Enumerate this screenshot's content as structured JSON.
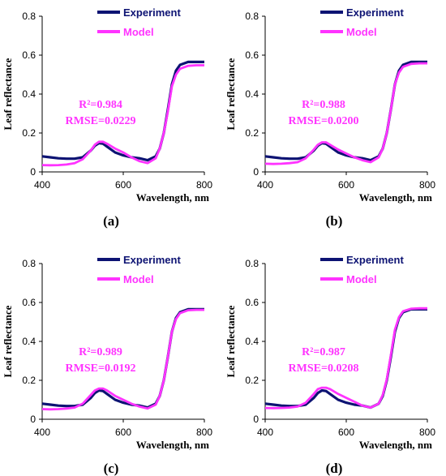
{
  "colors": {
    "experiment": "#0d1373",
    "model": "#ff33ff",
    "axis": "#000000"
  },
  "chart_data": [
    {
      "type": "line",
      "panel_label": "(a)",
      "xlabel": "Wavelength, nm",
      "ylabel": "Leaf reflectance",
      "xlim": [
        400,
        800
      ],
      "ylim": [
        0,
        0.8
      ],
      "xticks": [
        "400",
        "600",
        "800"
      ],
      "yticks": [
        "0",
        "0.2",
        "0.4",
        "0.6",
        "0.8"
      ],
      "r2_text": "R²=0.984",
      "rmse_text": "RMSE=0.0229",
      "series": [
        {
          "name": "Experiment",
          "x": [
            400,
            420,
            440,
            460,
            480,
            500,
            520,
            530,
            540,
            550,
            560,
            580,
            600,
            620,
            640,
            660,
            680,
            690,
            700,
            710,
            720,
            730,
            740,
            760,
            780,
            800
          ],
          "y": [
            0.08,
            0.075,
            0.07,
            0.068,
            0.068,
            0.075,
            0.11,
            0.135,
            0.148,
            0.145,
            0.13,
            0.1,
            0.085,
            0.075,
            0.07,
            0.06,
            0.08,
            0.12,
            0.2,
            0.32,
            0.45,
            0.52,
            0.55,
            0.565,
            0.565,
            0.565
          ]
        },
        {
          "name": "Model",
          "x": [
            400,
            420,
            440,
            460,
            480,
            500,
            520,
            530,
            540,
            550,
            560,
            580,
            600,
            620,
            640,
            660,
            680,
            690,
            700,
            710,
            720,
            730,
            740,
            760,
            780,
            800
          ],
          "y": [
            0.035,
            0.034,
            0.035,
            0.038,
            0.045,
            0.065,
            0.11,
            0.14,
            0.155,
            0.155,
            0.145,
            0.12,
            0.1,
            0.075,
            0.055,
            0.045,
            0.07,
            0.12,
            0.2,
            0.31,
            0.44,
            0.5,
            0.53,
            0.545,
            0.548,
            0.548
          ]
        }
      ]
    },
    {
      "type": "line",
      "panel_label": "(b)",
      "xlabel": "Wavelength, nm",
      "ylabel": "Leaf reflectance",
      "xlim": [
        400,
        800
      ],
      "ylim": [
        0,
        0.8
      ],
      "xticks": [
        "400",
        "600",
        "800"
      ],
      "yticks": [
        "0",
        "0.2",
        "0.4",
        "0.6",
        "0.8"
      ],
      "r2_text": "R²=0.988",
      "rmse_text": "RMSE=0.0200",
      "series": [
        {
          "name": "Experiment",
          "x": [
            400,
            420,
            440,
            460,
            480,
            500,
            520,
            530,
            540,
            550,
            560,
            580,
            600,
            620,
            640,
            660,
            680,
            690,
            700,
            710,
            720,
            730,
            740,
            760,
            780,
            800
          ],
          "y": [
            0.08,
            0.075,
            0.07,
            0.068,
            0.068,
            0.075,
            0.11,
            0.135,
            0.148,
            0.145,
            0.13,
            0.1,
            0.085,
            0.075,
            0.07,
            0.06,
            0.08,
            0.12,
            0.2,
            0.32,
            0.45,
            0.52,
            0.55,
            0.565,
            0.565,
            0.565
          ]
        },
        {
          "name": "Model",
          "x": [
            400,
            420,
            440,
            460,
            480,
            500,
            520,
            530,
            540,
            550,
            560,
            580,
            600,
            620,
            640,
            660,
            680,
            690,
            700,
            710,
            720,
            730,
            740,
            760,
            780,
            800
          ],
          "y": [
            0.042,
            0.041,
            0.042,
            0.045,
            0.05,
            0.07,
            0.115,
            0.14,
            0.152,
            0.152,
            0.14,
            0.115,
            0.095,
            0.075,
            0.06,
            0.05,
            0.075,
            0.12,
            0.2,
            0.32,
            0.45,
            0.51,
            0.54,
            0.555,
            0.558,
            0.558
          ]
        }
      ]
    },
    {
      "type": "line",
      "panel_label": "(c)",
      "xlabel": "Wavelength, nm",
      "ylabel": "Leaf reflectance",
      "xlim": [
        400,
        800
      ],
      "ylim": [
        0,
        0.8
      ],
      "xticks": [
        "400",
        "600",
        "800"
      ],
      "yticks": [
        "0",
        "0.2",
        "0.4",
        "0.6",
        "0.8"
      ],
      "r2_text": "R²=0.989",
      "rmse_text": "RMSE=0.0192",
      "series": [
        {
          "name": "Experiment",
          "x": [
            400,
            420,
            440,
            460,
            480,
            500,
            520,
            530,
            540,
            550,
            560,
            580,
            600,
            620,
            640,
            660,
            680,
            690,
            700,
            710,
            720,
            730,
            740,
            760,
            780,
            800
          ],
          "y": [
            0.08,
            0.075,
            0.07,
            0.068,
            0.068,
            0.075,
            0.11,
            0.135,
            0.148,
            0.145,
            0.13,
            0.1,
            0.085,
            0.075,
            0.07,
            0.06,
            0.08,
            0.12,
            0.2,
            0.32,
            0.45,
            0.52,
            0.55,
            0.565,
            0.565,
            0.565
          ]
        },
        {
          "name": "Model",
          "x": [
            400,
            420,
            440,
            460,
            480,
            500,
            520,
            530,
            540,
            550,
            560,
            580,
            600,
            620,
            640,
            660,
            680,
            690,
            700,
            710,
            720,
            730,
            740,
            760,
            780,
            800
          ],
          "y": [
            0.052,
            0.051,
            0.052,
            0.055,
            0.06,
            0.08,
            0.125,
            0.148,
            0.158,
            0.158,
            0.148,
            0.12,
            0.1,
            0.08,
            0.065,
            0.055,
            0.075,
            0.12,
            0.2,
            0.32,
            0.45,
            0.515,
            0.545,
            0.56,
            0.562,
            0.562
          ]
        }
      ]
    },
    {
      "type": "line",
      "panel_label": "(d)",
      "xlabel": "Wavelength, nm",
      "ylabel": "Leaf reflectance",
      "xlim": [
        400,
        800
      ],
      "ylim": [
        0,
        0.8
      ],
      "xticks": [
        "400",
        "600",
        "800"
      ],
      "yticks": [
        "0",
        "0.2",
        "0.4",
        "0.6",
        "0.8"
      ],
      "r2_text": "R²=0.987",
      "rmse_text": "RMSE=0.0208",
      "series": [
        {
          "name": "Experiment",
          "x": [
            400,
            420,
            440,
            460,
            480,
            500,
            520,
            530,
            540,
            550,
            560,
            580,
            600,
            620,
            640,
            660,
            680,
            690,
            700,
            710,
            720,
            730,
            740,
            760,
            780,
            800
          ],
          "y": [
            0.08,
            0.075,
            0.07,
            0.068,
            0.068,
            0.075,
            0.11,
            0.135,
            0.148,
            0.145,
            0.13,
            0.1,
            0.085,
            0.075,
            0.07,
            0.06,
            0.08,
            0.12,
            0.2,
            0.32,
            0.45,
            0.52,
            0.55,
            0.565,
            0.565,
            0.565
          ]
        },
        {
          "name": "Model",
          "x": [
            400,
            420,
            440,
            460,
            480,
            500,
            520,
            530,
            540,
            550,
            560,
            580,
            600,
            620,
            640,
            660,
            680,
            690,
            700,
            710,
            720,
            730,
            740,
            760,
            780,
            800
          ],
          "y": [
            0.058,
            0.057,
            0.058,
            0.06,
            0.065,
            0.085,
            0.13,
            0.155,
            0.162,
            0.162,
            0.155,
            0.13,
            0.11,
            0.09,
            0.07,
            0.06,
            0.08,
            0.125,
            0.205,
            0.33,
            0.46,
            0.525,
            0.555,
            0.568,
            0.57,
            0.57
          ]
        }
      ]
    }
  ]
}
